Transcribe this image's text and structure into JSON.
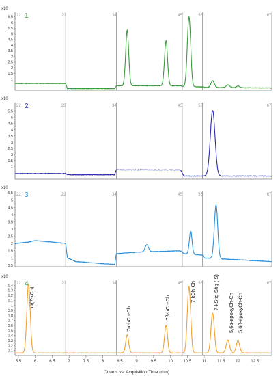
{
  "chart_data": {
    "type": "line",
    "xlabel": "Counts vs. Acquisition Time (min)",
    "x_ticks": [
      "5.5",
      "6",
      "6.5",
      "7",
      "7.5",
      "8",
      "8.5",
      "9",
      "9.5",
      "10",
      "10.5",
      "11",
      "11.5",
      "12",
      "12.5"
    ],
    "xlim": [
      5.4,
      13.0
    ],
    "segment_boundaries": [
      6.9,
      8.4,
      10.35,
      10.95
    ],
    "segment_labels": [
      "22",
      "23",
      "34",
      "45",
      "56",
      "67"
    ],
    "panels": [
      {
        "number": "1",
        "scale_label": "x10",
        "color": "#3a9a3a",
        "number_color": "#3a9a3a",
        "ylim": [
          0,
          6.9
        ],
        "y_ticks": [
          "1",
          "1.5",
          "2",
          "2.5",
          "3",
          "3.5",
          "4",
          "4.5",
          "5",
          "5.5",
          "6",
          "6.5"
        ],
        "baseline": [
          [
            5.4,
            0.6
          ],
          [
            6.9,
            0.6
          ],
          [
            6.95,
            0.15
          ],
          [
            8.35,
            0.15
          ],
          [
            8.4,
            0.4
          ],
          [
            10.3,
            0.4
          ],
          [
            10.4,
            0.3
          ],
          [
            10.95,
            0.3
          ],
          [
            11.0,
            0.25
          ],
          [
            13.0,
            0.2
          ]
        ],
        "peaks": [
          {
            "x": 8.72,
            "h": 4.9,
            "w": 0.045
          },
          {
            "x": 9.87,
            "h": 4.0,
            "w": 0.045
          },
          {
            "x": 10.55,
            "h": 6.2,
            "w": 0.05
          },
          {
            "x": 11.25,
            "h": 0.6,
            "w": 0.05
          },
          {
            "x": 11.7,
            "h": 0.25,
            "w": 0.05
          },
          {
            "x": 12.0,
            "h": 0.15,
            "w": 0.05
          }
        ],
        "annotations": []
      },
      {
        "number": "2",
        "scale_label": "x10",
        "color": "#2a2ab0",
        "number_color": "#2a2ab0",
        "ylim": [
          0,
          6.2
        ],
        "y_ticks": [
          "1",
          "1.5",
          "2",
          "2.5",
          "3",
          "3.5",
          "4",
          "4.5",
          "5",
          "5.5"
        ],
        "baseline": [
          [
            5.4,
            0.45
          ],
          [
            6.9,
            0.45
          ],
          [
            6.95,
            0.35
          ],
          [
            8.35,
            0.35
          ],
          [
            8.4,
            0.75
          ],
          [
            10.3,
            0.75
          ],
          [
            10.4,
            0.25
          ],
          [
            13.0,
            0.25
          ]
        ],
        "peaks": [
          {
            "x": 11.25,
            "h": 5.3,
            "w": 0.07
          }
        ],
        "annotations": []
      },
      {
        "number": "3",
        "scale_label": "x10",
        "color": "#2d8fd8",
        "number_color": "#2d8fd8",
        "ylim": [
          0.4,
          5.6
        ],
        "y_ticks": [
          "0.5",
          "1",
          "1.5",
          "2",
          "2.5",
          "3",
          "3.5",
          "4",
          "4.5",
          "5",
          "5.5"
        ],
        "baseline": [
          [
            5.4,
            2.0
          ],
          [
            5.8,
            2.1
          ],
          [
            6.0,
            2.2
          ],
          [
            6.5,
            2.1
          ],
          [
            6.9,
            2.0
          ],
          [
            6.95,
            1.0
          ],
          [
            7.2,
            0.75
          ],
          [
            8.35,
            0.55
          ],
          [
            8.4,
            1.3
          ],
          [
            9.0,
            1.4
          ],
          [
            10.3,
            1.5
          ],
          [
            10.4,
            1.3
          ],
          [
            10.95,
            1.2
          ],
          [
            11.0,
            1.0
          ],
          [
            13.0,
            0.75
          ]
        ],
        "peaks": [
          {
            "x": 9.3,
            "h": 0.5,
            "w": 0.05
          },
          {
            "x": 10.6,
            "h": 1.6,
            "w": 0.04
          },
          {
            "x": 11.35,
            "h": 3.7,
            "w": 0.05
          }
        ],
        "annotations": []
      },
      {
        "number": "4",
        "scale_label": "x10",
        "color": "#f0a030",
        "number_color": "#3a9a3a",
        "ylim": [
          0,
          1.5
        ],
        "y_ticks": [
          "0.1",
          "0.2",
          "0.3",
          "0.4",
          "0.5",
          "0.6",
          "0.7",
          "0.8",
          "0.9",
          "1",
          "1.1",
          "1.2",
          "1.3",
          "1.4"
        ],
        "baseline": [
          [
            5.4,
            0.05
          ],
          [
            13.0,
            0.05
          ]
        ],
        "peaks": [
          {
            "x": 5.8,
            "h": 1.37,
            "w": 0.05
          },
          {
            "x": 8.72,
            "h": 0.36,
            "w": 0.045
          },
          {
            "x": 9.87,
            "h": 0.55,
            "w": 0.045
          },
          {
            "x": 10.55,
            "h": 1.32,
            "w": 0.05
          },
          {
            "x": 11.25,
            "h": 0.8,
            "w": 0.05
          },
          {
            "x": 11.7,
            "h": 0.26,
            "w": 0.05
          },
          {
            "x": 12.0,
            "h": 0.25,
            "w": 0.05
          }
        ],
        "annotations": [
          {
            "x": 5.95,
            "y": 0.95,
            "text": "di(7-kCh)"
          },
          {
            "x": 8.82,
            "y": 0.48,
            "text": "7α-hCh-Ch"
          },
          {
            "x": 9.97,
            "y": 0.7,
            "text": "7β-hCh-Ch"
          },
          {
            "x": 10.72,
            "y": 1.05,
            "text": "7-kCh-Ch"
          },
          {
            "x": 11.4,
            "y": 0.9,
            "text": "7-kStig-Stig (IS)"
          },
          {
            "x": 11.85,
            "y": 0.45,
            "text": "5,6α-epoxyCh-Ch"
          },
          {
            "x": 12.12,
            "y": 0.45,
            "text": "5,6β-epoxyCh-Ch"
          }
        ]
      }
    ]
  }
}
